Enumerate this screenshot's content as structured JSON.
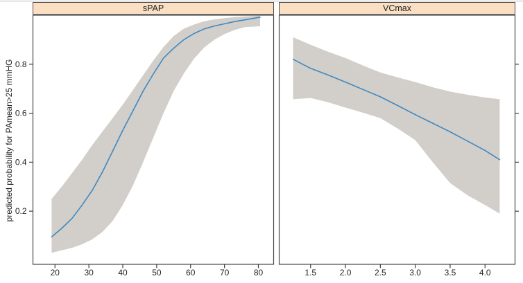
{
  "figure": {
    "ylabel": "predicted probability for PAmean>25 mmHG",
    "colors": {
      "strip_bg": "#fadfc3",
      "strip_border": "#4a4a4a",
      "panel_border": "#454545",
      "band": "#d2cec9",
      "line": "#3d89c3",
      "tick": "#3c3c3c",
      "text": "#1f1f1f",
      "figure_top_border": "#b5b5b5"
    }
  },
  "chart_data": [
    {
      "type": "line",
      "title": "sPAP",
      "xlabel": "",
      "ylabel": "predicted probability for PAmean>25 mmHG",
      "xlim": [
        13.5,
        84.5
      ],
      "ylim": [
        -0.017,
        1.0
      ],
      "xticks": [
        20,
        30,
        40,
        50,
        60,
        70,
        80
      ],
      "xtick_labels": [
        "20",
        "30",
        "40",
        "50",
        "60",
        "70",
        "80"
      ],
      "yticks": [
        0.2,
        0.4,
        0.6,
        0.8
      ],
      "ytick_labels": [
        "0.2",
        "0.4",
        "0.6",
        "0.8"
      ],
      "ytick_side": "left",
      "ytick_labeled": true,
      "grid": false,
      "legend": "none",
      "x": [
        19,
        22,
        25,
        28,
        31,
        34,
        37,
        40,
        43,
        46,
        49,
        52,
        55,
        58,
        61,
        64,
        67,
        70,
        73,
        76,
        80.5
      ],
      "series": [
        {
          "name": "predicted probability",
          "values": [
            0.095,
            0.13,
            0.17,
            0.225,
            0.285,
            0.36,
            0.445,
            0.53,
            0.61,
            0.69,
            0.76,
            0.825,
            0.865,
            0.9,
            0.925,
            0.944,
            0.956,
            0.965,
            0.974,
            0.981,
            0.992
          ]
        },
        {
          "name": "upper 95% CI",
          "values": [
            0.25,
            0.3,
            0.355,
            0.41,
            0.47,
            0.525,
            0.58,
            0.635,
            0.695,
            0.755,
            0.815,
            0.87,
            0.915,
            0.945,
            0.962,
            0.975,
            0.983,
            0.988,
            0.992,
            0.995,
            0.998
          ]
        },
        {
          "name": "lower 95% CI",
          "values": [
            0.03,
            0.04,
            0.05,
            0.065,
            0.085,
            0.115,
            0.16,
            0.225,
            0.305,
            0.4,
            0.5,
            0.6,
            0.69,
            0.762,
            0.822,
            0.868,
            0.9,
            0.923,
            0.94,
            0.951,
            0.955
          ]
        }
      ]
    },
    {
      "type": "line",
      "title": "VCmax",
      "xlabel": "",
      "ylabel": "predicted probability for PAmean>25 mmHG",
      "xlim": [
        1.05,
        4.43
      ],
      "ylim": [
        -0.017,
        1.0
      ],
      "xticks": [
        1.5,
        2.0,
        2.5,
        3.0,
        3.5,
        4.0
      ],
      "xtick_labels": [
        "1.5",
        "2.0",
        "2.5",
        "3.0",
        "3.5",
        "4.0"
      ],
      "yticks": [
        0.2,
        0.4,
        0.6,
        0.8
      ],
      "ytick_labels": [],
      "ytick_side": "right",
      "ytick_labeled": false,
      "grid": false,
      "legend": "none",
      "x": [
        1.25,
        1.5,
        1.75,
        2.0,
        2.25,
        2.5,
        2.75,
        3.0,
        3.25,
        3.5,
        3.75,
        4.0,
        4.21
      ],
      "series": [
        {
          "name": "predicted probability",
          "values": [
            0.82,
            0.783,
            0.756,
            0.727,
            0.697,
            0.667,
            0.631,
            0.594,
            0.559,
            0.524,
            0.486,
            0.448,
            0.41
          ]
        },
        {
          "name": "upper 95% CI",
          "values": [
            0.91,
            0.879,
            0.851,
            0.825,
            0.795,
            0.766,
            0.746,
            0.727,
            0.706,
            0.688,
            0.675,
            0.664,
            0.657
          ]
        },
        {
          "name": "lower 95% CI",
          "values": [
            0.657,
            0.662,
            0.645,
            0.623,
            0.602,
            0.58,
            0.537,
            0.49,
            0.4,
            0.315,
            0.265,
            0.225,
            0.19
          ]
        }
      ]
    }
  ]
}
